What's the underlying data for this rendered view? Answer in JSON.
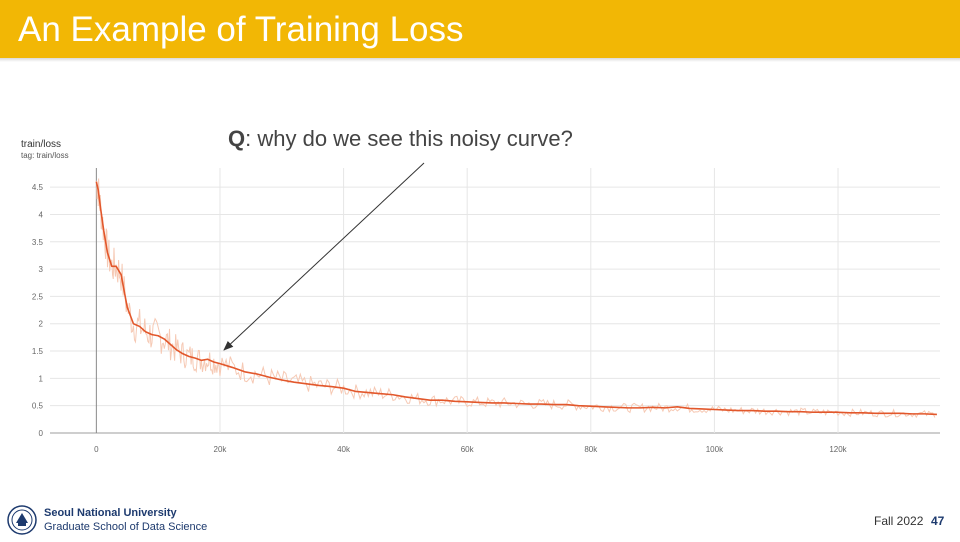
{
  "slide": {
    "title": "An Example of Training Loss",
    "question_bold": "Q",
    "question_rest": ": why do we see this noisy curve?",
    "footer": {
      "university": "Seoul National University",
      "school": "Graduate School of Data Science",
      "semester": "Fall 2022",
      "page": "47"
    },
    "colors": {
      "title_bar": "#f2b705",
      "title_text": "#ffffff",
      "line": "#e2572b",
      "raw_line": "#f6c9b4",
      "footer_text": "#1d3a6e"
    }
  },
  "chart_data": {
    "type": "line",
    "title": "train/loss",
    "subtitle": "tag: train/loss",
    "x_ticks": [
      "0",
      "20k",
      "40k",
      "60k",
      "80k",
      "100k",
      "120k"
    ],
    "x_tick_values": [
      0,
      20000,
      40000,
      60000,
      80000,
      100000,
      120000
    ],
    "y_ticks": [
      "0",
      "0.5",
      "1",
      "1.5",
      "2",
      "2.5",
      "3",
      "3.5",
      "4",
      "4.5"
    ],
    "y_tick_values": [
      0,
      0.5,
      1,
      1.5,
      2,
      2.5,
      3,
      3.5,
      4,
      4.5
    ],
    "xlim": [
      -7500,
      136500
    ],
    "ylim": [
      0,
      4.85
    ],
    "grid": true,
    "series": [
      {
        "x": [
          0,
          300,
          700,
          1200,
          1800,
          2500,
          3200,
          4000,
          5000,
          6000,
          7000,
          8000,
          9000,
          10000,
          11000,
          12000,
          13000,
          14000,
          15000,
          16000,
          17000,
          18000,
          19000,
          20000,
          22000,
          24000,
          26000,
          28000,
          30000,
          32000,
          34000,
          36000,
          38000,
          40000,
          42000,
          44000,
          46000,
          48000,
          50000,
          52000,
          54000,
          56000,
          58000,
          60000,
          62000,
          64000,
          66000,
          68000,
          70000,
          72000,
          74000,
          76000,
          78000,
          80000,
          82000,
          84000,
          86000,
          88000,
          90000,
          92000,
          94000,
          96000,
          98000,
          100000,
          102000,
          104000,
          106000,
          108000,
          110000,
          112000,
          114000,
          116000,
          118000,
          120000,
          122000,
          124000,
          126000,
          128000,
          130000,
          132000,
          134000,
          136000
        ],
        "y": [
          4.6,
          4.45,
          4.1,
          3.7,
          3.3,
          3.05,
          3.05,
          2.9,
          2.3,
          2.0,
          1.95,
          1.85,
          1.8,
          1.78,
          1.72,
          1.62,
          1.52,
          1.45,
          1.4,
          1.37,
          1.33,
          1.35,
          1.3,
          1.27,
          1.2,
          1.12,
          1.08,
          1.02,
          0.97,
          0.93,
          0.9,
          0.87,
          0.85,
          0.82,
          0.76,
          0.74,
          0.72,
          0.7,
          0.66,
          0.63,
          0.6,
          0.6,
          0.58,
          0.57,
          0.56,
          0.55,
          0.55,
          0.54,
          0.53,
          0.53,
          0.52,
          0.52,
          0.5,
          0.49,
          0.48,
          0.47,
          0.46,
          0.46,
          0.47,
          0.46,
          0.48,
          0.45,
          0.44,
          0.43,
          0.42,
          0.41,
          0.41,
          0.4,
          0.4,
          0.39,
          0.39,
          0.38,
          0.38,
          0.38,
          0.37,
          0.37,
          0.36,
          0.36,
          0.36,
          0.35,
          0.35,
          0.34
        ]
      }
    ]
  }
}
